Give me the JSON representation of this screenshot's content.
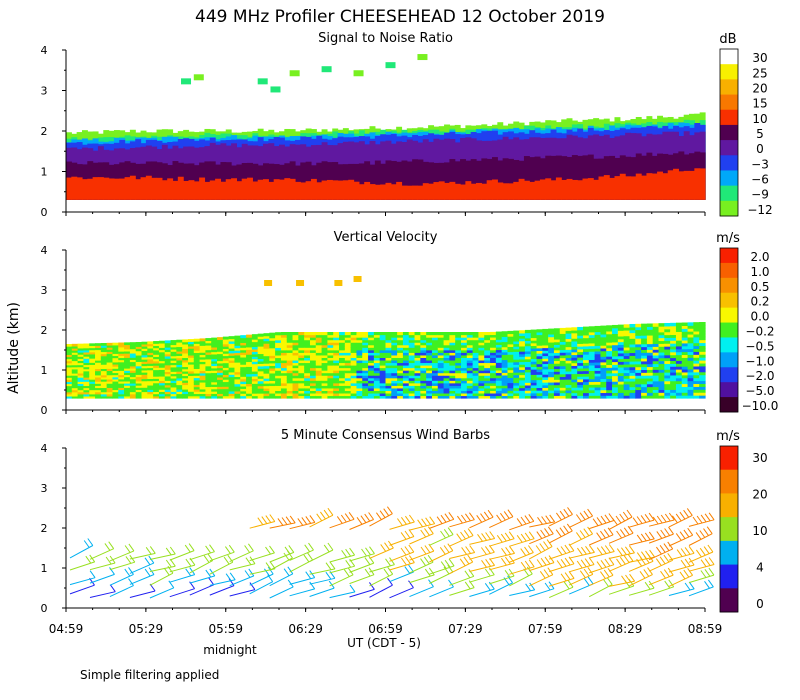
{
  "title": "449 MHz Profiler CHEESEHEAD 12 October 2019",
  "ylabel": "Altitude (km)",
  "xlabel": "UT  (CDT - 5)",
  "midnight_label": "midnight",
  "footnote": "Simple filtering applied",
  "x_tick_labels": [
    "04:59",
    "05:29",
    "05:59",
    "06:29",
    "06:59",
    "07:29",
    "07:59",
    "08:29",
    "08:59"
  ],
  "chart_data": [
    {
      "type": "heatmap",
      "title": "Signal to Noise Ratio",
      "x_range": [
        "04:59",
        "08:59"
      ],
      "ylim": [
        0,
        4
      ],
      "y_ticks": [
        0,
        1,
        2,
        3,
        4
      ],
      "colorbar": {
        "unit": "dB",
        "tick_labels": [
          "30",
          "25",
          "20",
          "15",
          "10",
          "5",
          "0",
          "−3",
          "−6",
          "−9",
          "−12"
        ],
        "colors": [
          "#ffffff",
          "#f8f000",
          "#f8b000",
          "#f87800",
          "#f83000",
          "#500050",
          "#6018a0",
          "#2040f0",
          "#00a8f8",
          "#20e878",
          "#78f020"
        ]
      },
      "layers": [
        {
          "level": "10",
          "color": "#f83000",
          "bottom_km": 0.3,
          "top_km": [
            0.85,
            0.85,
            0.8,
            0.8,
            0.75,
            0.7,
            0.75,
            0.8,
            0.9,
            1.1
          ]
        },
        {
          "level": "5",
          "color": "#500050",
          "bottom_km": 0.3,
          "top_km": [
            1.2,
            1.2,
            1.2,
            1.2,
            1.2,
            1.25,
            1.3,
            1.35,
            1.4,
            1.5
          ]
        },
        {
          "level": "0",
          "color": "#6018a0",
          "bottom_km": 0.3,
          "top_km": [
            1.55,
            1.6,
            1.65,
            1.65,
            1.7,
            1.75,
            1.8,
            1.85,
            1.9,
            1.95
          ]
        },
        {
          "level": "-3",
          "color": "#2040f0",
          "bottom_km": 0.3,
          "top_km": [
            1.7,
            1.75,
            1.8,
            1.8,
            1.85,
            1.9,
            1.95,
            2.0,
            2.05,
            2.15
          ]
        },
        {
          "level": "-6",
          "color": "#00a8f8",
          "bottom_km": 0.3,
          "top_km": [
            1.75,
            1.8,
            1.85,
            1.85,
            1.9,
            1.95,
            2.0,
            2.05,
            2.1,
            2.2
          ]
        },
        {
          "level": "-9",
          "color": "#20e878",
          "bottom_km": 0.3,
          "top_km": [
            1.8,
            1.85,
            1.9,
            1.9,
            1.95,
            2.0,
            2.05,
            2.1,
            2.15,
            2.25
          ]
        },
        {
          "level": "-12",
          "color": "#78f020",
          "bottom_km": 0.3,
          "top_km": [
            1.95,
            2.0,
            2.0,
            2.0,
            2.05,
            2.1,
            2.15,
            2.25,
            2.3,
            2.4
          ]
        }
      ]
    },
    {
      "type": "heatmap",
      "title": "Vertical Velocity",
      "x_range": [
        "04:59",
        "08:59"
      ],
      "ylim": [
        0,
        4
      ],
      "y_ticks": [
        0,
        1,
        2,
        3,
        4
      ],
      "colorbar": {
        "unit": "m/s",
        "tick_labels": [
          "2.0",
          "1.0",
          "0.5",
          "0.2",
          "0.0",
          "−0.2",
          "−0.5",
          "−1.0",
          "−2.0",
          "−5.0",
          "−10.0"
        ],
        "colors": [
          "#f82000",
          "#f86000",
          "#f89000",
          "#f8c000",
          "#f8f800",
          "#40f020",
          "#00f0f0",
          "#00a0f8",
          "#2040f0",
          "#5010a0",
          "#380028"
        ]
      },
      "data_bottom_km": 0.3,
      "data_top_km": [
        1.65,
        1.7,
        1.8,
        1.95,
        1.95,
        1.95,
        1.95,
        2.05,
        2.15,
        2.2
      ]
    },
    {
      "type": "scatter",
      "title": "5 Minute Consensus Wind Barbs",
      "x_range": [
        "04:59",
        "08:59"
      ],
      "ylim": [
        0,
        4
      ],
      "y_ticks": [
        0,
        1,
        2,
        3,
        4
      ],
      "colorbar": {
        "unit": "m/s",
        "tick_labels": [
          "30",
          "20",
          "10",
          "4",
          "0"
        ],
        "colors": [
          "#f82000",
          "#f88000",
          "#f8b000",
          "#98e020",
          "#00b0f0",
          "#2020f0",
          "#500050"
        ]
      },
      "barb_rows_km": [
        0.3,
        0.6,
        0.9,
        1.2,
        1.6,
        2.0
      ],
      "speed_by_row_ms": [
        [
          4,
          4,
          5,
          6,
          4,
          6,
          8,
          10,
          12,
          10
        ],
        [
          6,
          8,
          8,
          9,
          10,
          9,
          12,
          15,
          16,
          14
        ],
        [
          10,
          10,
          11,
          12,
          12,
          13,
          15,
          18,
          18,
          16
        ],
        [
          10,
          11,
          12,
          12,
          13,
          15,
          17,
          18,
          20,
          20
        ],
        [
          null,
          null,
          null,
          null,
          null,
          15,
          18,
          20,
          22,
          22
        ],
        [
          null,
          null,
          null,
          20,
          20,
          20,
          22,
          22,
          24,
          26
        ]
      ]
    }
  ]
}
